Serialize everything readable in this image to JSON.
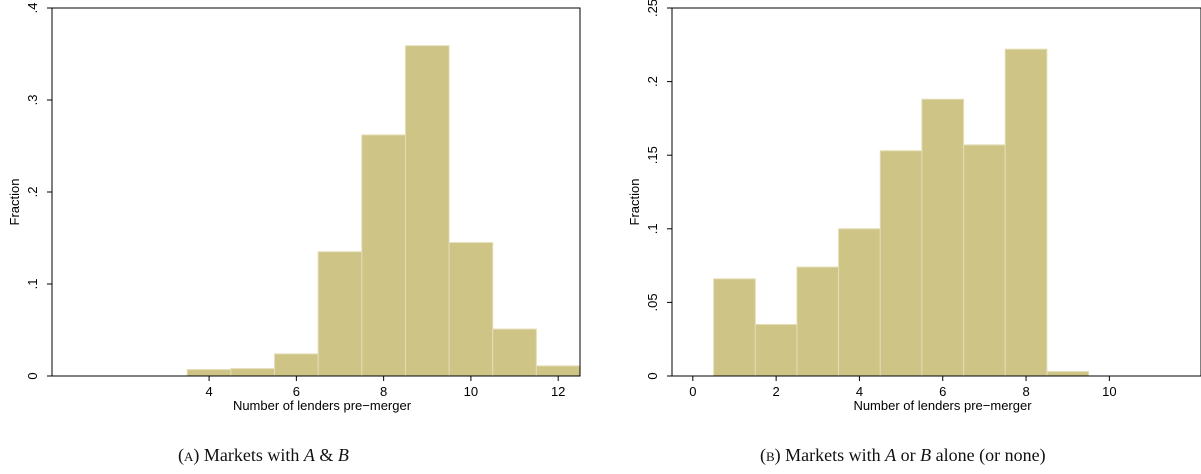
{
  "captions": {
    "a": {
      "letter": "(a)",
      "pre": "Markets with ",
      "var1": "A",
      "mid": " & ",
      "var2": "B",
      "post": ""
    },
    "b": {
      "letter": "(b)",
      "pre": "Markets with ",
      "var1": "A",
      "mid": " or ",
      "var2": "B",
      "post": " alone (or none)"
    }
  },
  "colors": {
    "bar": "#cdc486",
    "bar_edge": "#e4dcb4",
    "axis": "#000000"
  },
  "chart_data": [
    {
      "type": "bar",
      "xlabel": "Number of lenders pre−merger",
      "ylabel": "Fraction",
      "xlim": [
        0.4,
        12.5
      ],
      "ylim": [
        0,
        0.4
      ],
      "xticks": [
        4,
        6,
        8,
        10,
        12
      ],
      "xtick_labels": [
        "4",
        "6",
        "8",
        "10",
        "12"
      ],
      "yticks": [
        0,
        0.1,
        0.2,
        0.3,
        0.4
      ],
      "ytick_labels": [
        "0",
        ".1",
        ".2",
        ".3",
        ".4"
      ],
      "grid": false,
      "categories": [
        4,
        5,
        6,
        7,
        8,
        9,
        10,
        11,
        12
      ],
      "values": [
        0.007,
        0.008,
        0.024,
        0.135,
        0.262,
        0.359,
        0.145,
        0.051,
        0.011
      ]
    },
    {
      "type": "bar",
      "xlabel": "Number of lenders pre−merger",
      "ylabel": "Fraction",
      "xlim": [
        -0.5,
        12.2
      ],
      "ylim": [
        0,
        0.25
      ],
      "xticks": [
        0,
        2,
        4,
        6,
        8,
        10
      ],
      "xtick_labels": [
        "0",
        "2",
        "4",
        "6",
        "8",
        "10"
      ],
      "yticks": [
        0,
        0.05,
        0.1,
        0.15,
        0.2,
        0.25
      ],
      "ytick_labels": [
        "0",
        ".05",
        ".1",
        ".15",
        ".2",
        ".25"
      ],
      "grid": false,
      "categories": [
        1,
        2,
        3,
        4,
        5,
        6,
        7,
        8,
        9
      ],
      "values": [
        0.066,
        0.035,
        0.074,
        0.1,
        0.153,
        0.188,
        0.157,
        0.222,
        0.003
      ]
    }
  ]
}
